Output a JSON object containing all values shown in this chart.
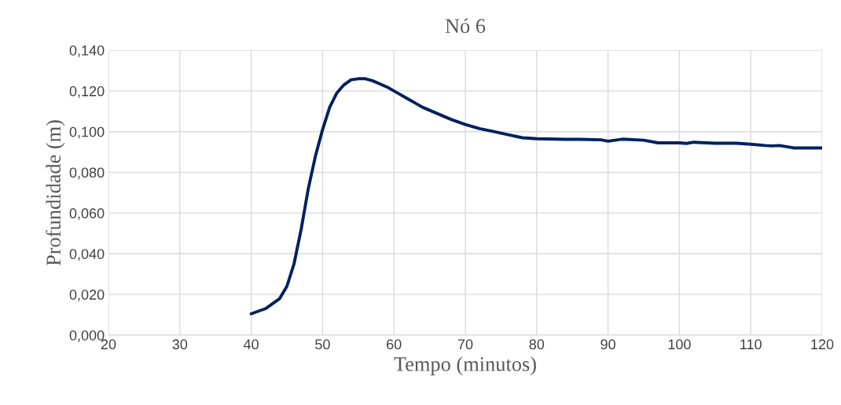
{
  "chart_data": {
    "type": "line",
    "title": "Nó 6",
    "xlabel": "Tempo (minutos)",
    "ylabel": "Profundidade (m)",
    "x": [
      40,
      42,
      44,
      45,
      46,
      47,
      48,
      49,
      50,
      51,
      52,
      53,
      54,
      55,
      56,
      57,
      58,
      59,
      60,
      62,
      63,
      64,
      66,
      68,
      70,
      72,
      74,
      76,
      78,
      80,
      84,
      86,
      89,
      90,
      92,
      95,
      97,
      100,
      101,
      102,
      105,
      108,
      110,
      112,
      113,
      114,
      116,
      120
    ],
    "series": [
      {
        "color": "#002060",
        "values": [
          0.0105,
          0.013,
          0.018,
          0.024,
          0.035,
          0.052,
          0.072,
          0.088,
          0.101,
          0.112,
          0.119,
          0.123,
          0.1255,
          0.126,
          0.126,
          0.125,
          0.1235,
          0.122,
          0.12,
          0.116,
          0.114,
          0.112,
          0.109,
          0.106,
          0.1035,
          0.1015,
          0.1,
          0.0985,
          0.097,
          0.0965,
          0.0962,
          0.0962,
          0.096,
          0.0953,
          0.0963,
          0.0958,
          0.0945,
          0.0945,
          0.0942,
          0.0948,
          0.0943,
          0.0943,
          0.0938,
          0.0932,
          0.093,
          0.0932,
          0.092,
          0.092
        ]
      }
    ],
    "xlim": [
      20,
      120
    ],
    "xticks": [
      20,
      30,
      40,
      50,
      60,
      70,
      80,
      90,
      100,
      110,
      120
    ],
    "ylim": [
      0,
      0.14
    ],
    "yticks": [
      {
        "value": 0,
        "label": "0,000"
      },
      {
        "value": 0.02,
        "label": "0,020"
      },
      {
        "value": 0.04,
        "label": "0,040"
      },
      {
        "value": 0.06,
        "label": "0,060"
      },
      {
        "value": 0.08,
        "label": "0,080"
      },
      {
        "value": 0.1,
        "label": "0,100"
      },
      {
        "value": 0.12,
        "label": "0,120"
      },
      {
        "value": 0.14,
        "label": "0,140"
      }
    ],
    "grid": true,
    "marker": "none",
    "line_style": "solid"
  }
}
